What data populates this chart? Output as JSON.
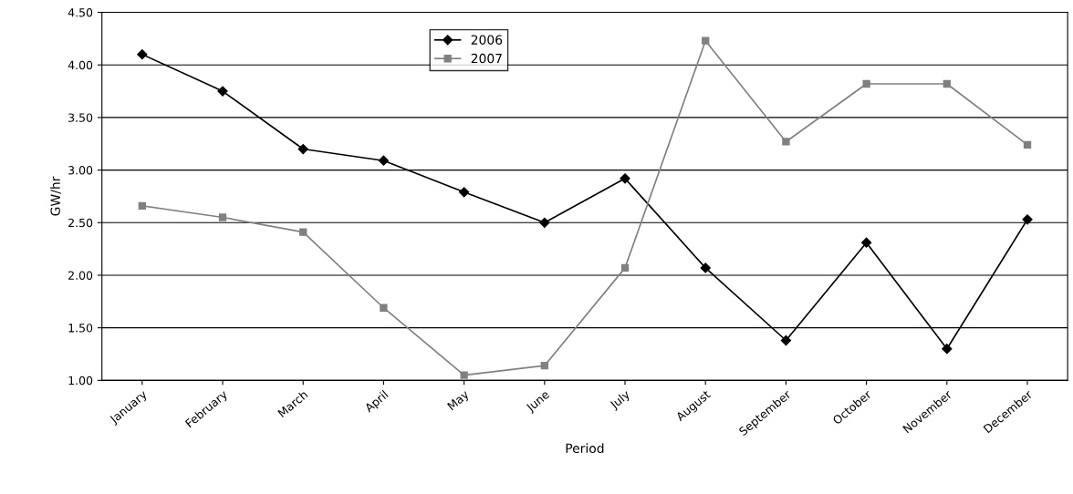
{
  "chart_data": {
    "type": "line",
    "xlabel": "Period",
    "ylabel": "GW/hr",
    "categories": [
      "January",
      "February",
      "March",
      "April",
      "May",
      "June",
      "July",
      "August",
      "September",
      "October",
      "November",
      "December"
    ],
    "series": [
      {
        "name": "2006",
        "color": "#000000",
        "marker": "diamond",
        "values": [
          4.1,
          3.75,
          3.2,
          3.09,
          2.79,
          2.5,
          2.92,
          2.07,
          1.38,
          2.31,
          1.3,
          2.53
        ]
      },
      {
        "name": "2007",
        "color": "#808080",
        "marker": "square",
        "values": [
          2.66,
          2.55,
          2.41,
          1.69,
          1.05,
          1.14,
          2.07,
          4.23,
          3.27,
          3.82,
          3.82,
          3.24
        ]
      }
    ],
    "ylim": [
      1.0,
      4.5
    ],
    "yticks": [
      {
        "value": 1.0,
        "label": "1.00"
      },
      {
        "value": 1.5,
        "label": "1.50"
      },
      {
        "value": 2.0,
        "label": "2.00"
      },
      {
        "value": 2.5,
        "label": "2.50"
      },
      {
        "value": 3.0,
        "label": "3.00"
      },
      {
        "value": 3.5,
        "label": "3.50"
      },
      {
        "value": 4.0,
        "label": "4.00"
      },
      {
        "value": 4.5,
        "label": "4.50"
      }
    ],
    "grid": "y",
    "legend": "top",
    "line_style": "solid"
  }
}
